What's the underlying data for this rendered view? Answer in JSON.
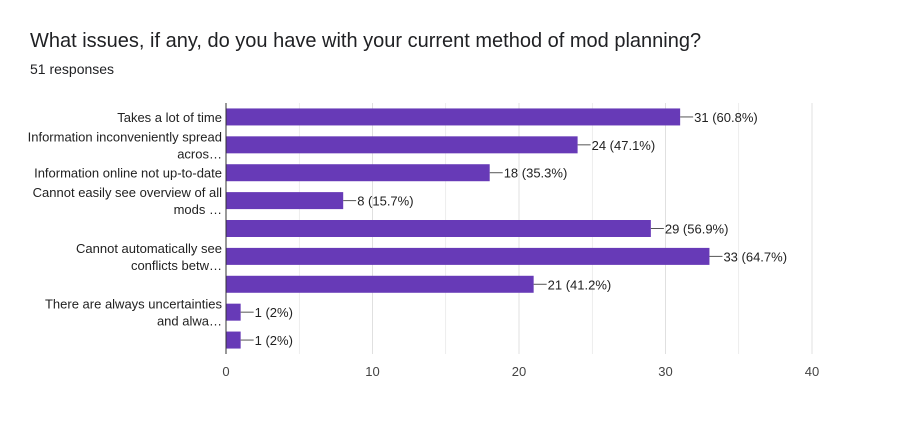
{
  "chart_data": {
    "type": "bar",
    "orientation": "horizontal",
    "title": "What issues, if any, do you have with your current method of mod planning?",
    "subtitle": "51 responses",
    "categories": [
      [
        "Takes a lot of time"
      ],
      [
        "Information inconveniently spread",
        "acros…"
      ],
      [
        "Information online not up-to-date"
      ],
      [
        "Cannot easily see overview of all",
        "mods …"
      ],
      [
        ""
      ],
      [
        "Cannot automatically see",
        "conflicts betw…"
      ],
      [
        ""
      ],
      [
        "There are always uncertainties",
        "and alwa…"
      ],
      [
        ""
      ]
    ],
    "values": [
      31,
      24,
      18,
      8,
      29,
      33,
      21,
      1,
      1
    ],
    "data_labels": [
      "31 (60.8%)",
      "24 (47.1%)",
      "18 (35.3%)",
      "8 (15.7%)",
      "29 (56.9%)",
      "33 (64.7%)",
      "21 (41.2%)",
      "1 (2%)",
      "1 (2%)"
    ],
    "xlim": [
      0,
      40
    ],
    "xticks": [
      0,
      10,
      20,
      30,
      40
    ],
    "xlabel": "",
    "ylabel": "",
    "grid": true,
    "colors": {
      "bar": "#673ab7",
      "grid": "#e0e0e0",
      "axis": "#333333",
      "leader": "#555555"
    }
  }
}
